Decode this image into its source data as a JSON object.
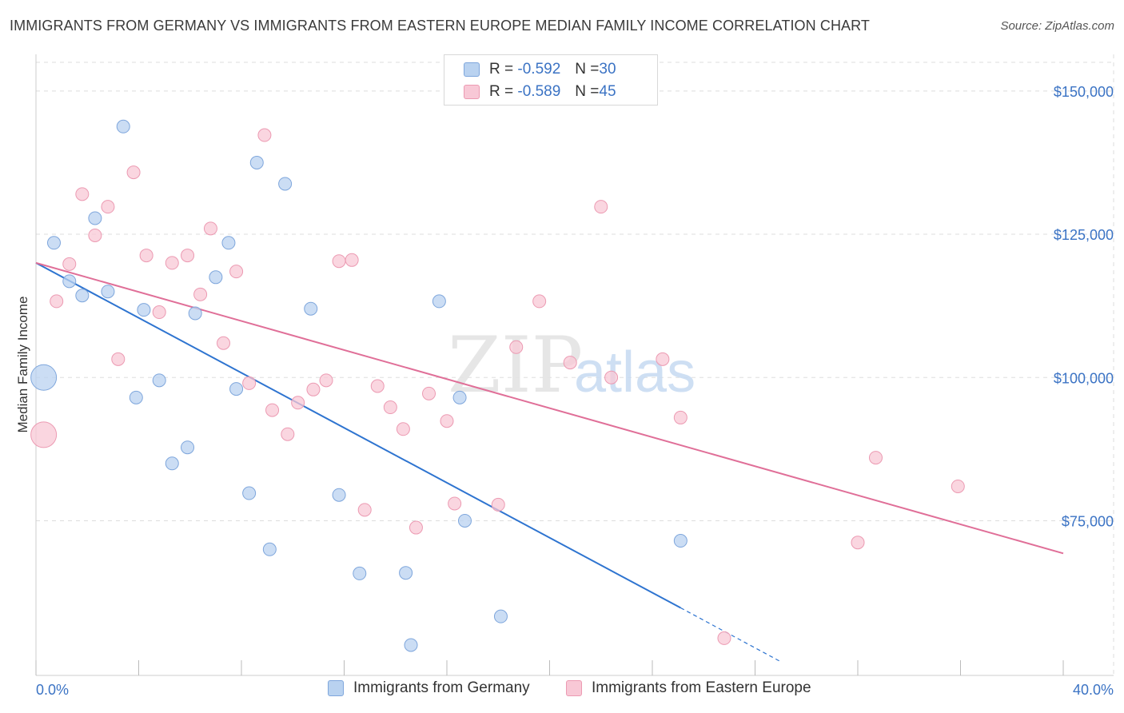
{
  "title": "IMMIGRANTS FROM GERMANY VS IMMIGRANTS FROM EASTERN EUROPE MEDIAN FAMILY INCOME CORRELATION CHART",
  "source": "Source: ZipAtlas.com",
  "watermark": {
    "zip": "ZIP",
    "atlas": "atlas"
  },
  "legend": {
    "rows": [
      {
        "r_label": "R = ",
        "r_value": "-0.592",
        "n_label": "N = ",
        "n_value": "30"
      },
      {
        "r_label": "R = ",
        "r_value": "-0.589",
        "n_label": "N = ",
        "n_value": "45"
      }
    ]
  },
  "bottom_legend": {
    "germany": "Immigrants from Germany",
    "eastern_europe": "Immigrants from Eastern Europe"
  },
  "colors": {
    "blue_fill": "#b9d2f0",
    "blue_stroke": "#7ea6dc",
    "blue_line": "#2e74d0",
    "pink_fill": "#f8c8d6",
    "pink_stroke": "#ec9ab2",
    "pink_line": "#e06f98",
    "tick_text": "#3b73c4",
    "grid": "#dddddd"
  },
  "chart_data": {
    "type": "scatter",
    "title": "IMMIGRANTS FROM GERMANY VS IMMIGRANTS FROM EASTERN EUROPE MEDIAN FAMILY INCOME CORRELATION CHART",
    "xlabel": "",
    "ylabel": "Median Family Income",
    "x_unit": "percent",
    "xlim": [
      0,
      40
    ],
    "ylim": [
      48000,
      155000
    ],
    "x_tick_labels": [
      "0.0%",
      "40.0%"
    ],
    "y_ticks": [
      75000,
      100000,
      125000,
      150000
    ],
    "y_tick_labels": [
      "$75,000",
      "$100,000",
      "$125,000",
      "$150,000"
    ],
    "grid": true,
    "legend_position": "top-center",
    "series": [
      {
        "name": "Immigrants from Germany",
        "color": "#7ea6dc",
        "r": -0.592,
        "n": 30,
        "points": [
          [
            0.3,
            100000,
            "large"
          ],
          [
            0.7,
            123500
          ],
          [
            1.3,
            116800
          ],
          [
            1.8,
            114300
          ],
          [
            2.3,
            127800
          ],
          [
            2.8,
            115000
          ],
          [
            3.4,
            143800
          ],
          [
            3.9,
            96500
          ],
          [
            4.2,
            111800
          ],
          [
            4.8,
            99500
          ],
          [
            5.3,
            85000
          ],
          [
            5.9,
            87800
          ],
          [
            6.2,
            111200
          ],
          [
            7.0,
            117500
          ],
          [
            7.5,
            123500
          ],
          [
            7.8,
            98000
          ],
          [
            8.3,
            79800
          ],
          [
            8.6,
            137500
          ],
          [
            9.1,
            70000
          ],
          [
            9.7,
            133800
          ],
          [
            10.7,
            112000
          ],
          [
            11.8,
            79500
          ],
          [
            12.6,
            65800
          ],
          [
            14.4,
            65900
          ],
          [
            14.6,
            53300
          ],
          [
            15.7,
            113300
          ],
          [
            16.5,
            96500
          ],
          [
            16.7,
            75000
          ],
          [
            18.1,
            58300
          ],
          [
            25.1,
            71500
          ]
        ],
        "trend": {
          "x": [
            0,
            25.1
          ],
          "y": [
            120000,
            59800
          ],
          "dashed_extension": {
            "x": [
              25.1,
              29.0
            ],
            "y": [
              59800,
              50400
            ]
          }
        }
      },
      {
        "name": "Immigrants from Eastern Europe",
        "color": "#ec9ab2",
        "r": -0.589,
        "n": 45,
        "points": [
          [
            0.3,
            90000,
            "large"
          ],
          [
            0.8,
            113300
          ],
          [
            1.3,
            119800
          ],
          [
            1.8,
            132000
          ],
          [
            2.3,
            124800
          ],
          [
            2.8,
            129800
          ],
          [
            3.2,
            103200
          ],
          [
            3.8,
            135800
          ],
          [
            4.3,
            121300
          ],
          [
            4.8,
            111400
          ],
          [
            5.3,
            120000
          ],
          [
            5.9,
            121300
          ],
          [
            6.4,
            114500
          ],
          [
            6.8,
            126000
          ],
          [
            7.3,
            106000
          ],
          [
            7.8,
            118500
          ],
          [
            8.3,
            99000
          ],
          [
            8.9,
            142300
          ],
          [
            9.2,
            94300
          ],
          [
            9.8,
            90100
          ],
          [
            10.2,
            95600
          ],
          [
            10.8,
            97900
          ],
          [
            11.3,
            99500
          ],
          [
            11.8,
            120300
          ],
          [
            12.3,
            120500
          ],
          [
            12.8,
            76900
          ],
          [
            13.3,
            98500
          ],
          [
            13.8,
            94800
          ],
          [
            14.3,
            91000
          ],
          [
            14.8,
            73800
          ],
          [
            15.3,
            97200
          ],
          [
            16.0,
            92400
          ],
          [
            16.3,
            78000
          ],
          [
            18.0,
            77800
          ],
          [
            18.7,
            105300
          ],
          [
            19.6,
            113300
          ],
          [
            20.8,
            102600
          ],
          [
            22.0,
            129800
          ],
          [
            22.4,
            100000
          ],
          [
            24.4,
            103200
          ],
          [
            25.1,
            93000
          ],
          [
            26.8,
            54500
          ],
          [
            32.0,
            71200
          ],
          [
            32.7,
            86000
          ],
          [
            35.9,
            81000
          ]
        ],
        "trend": {
          "x": [
            0,
            40
          ],
          "y": [
            120000,
            69300
          ]
        }
      }
    ]
  }
}
